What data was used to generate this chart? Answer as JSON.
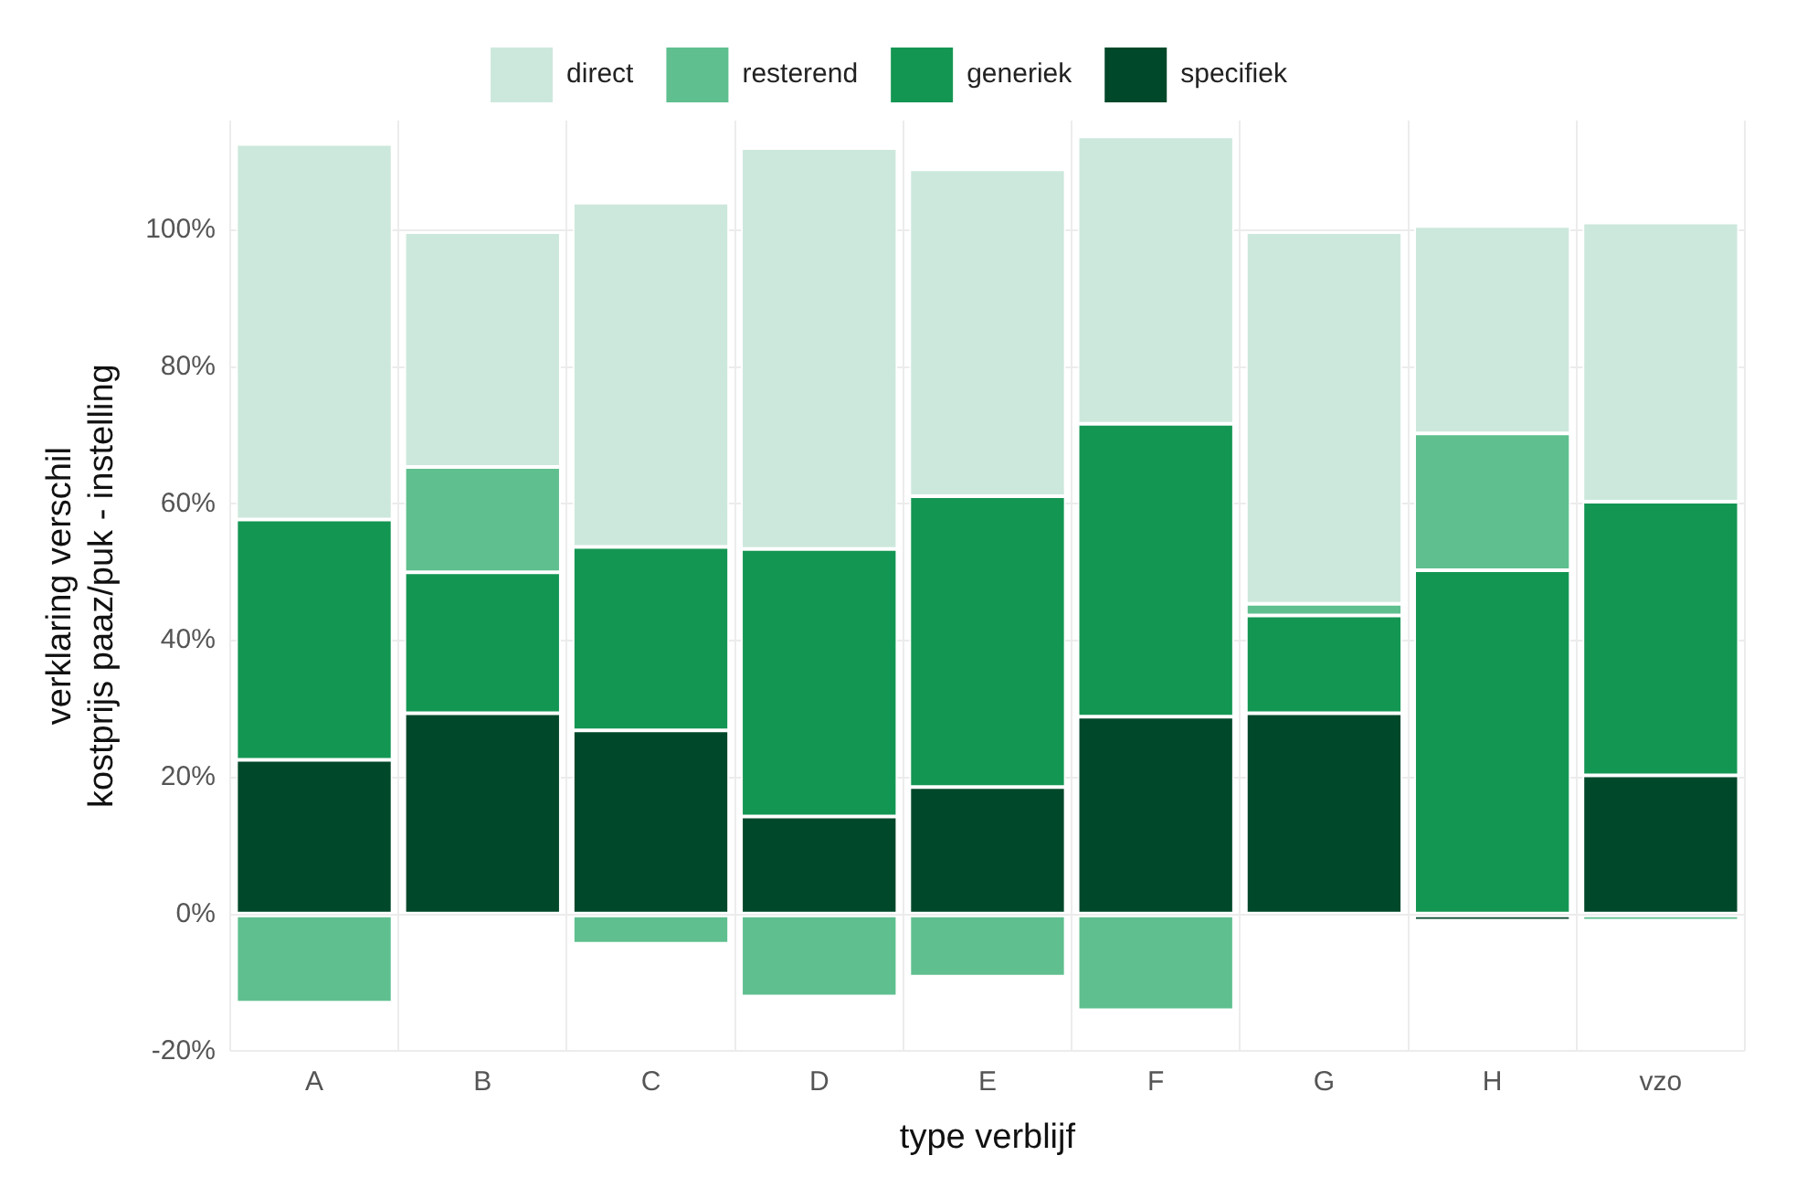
{
  "chart_data": {
    "type": "bar",
    "stacked": true,
    "xlabel": "type verblijf",
    "ylabel": "verklaring verschil\nkostprijs paaz/puk - instelling",
    "categories": [
      "A",
      "B",
      "C",
      "D",
      "E",
      "F",
      "G",
      "H",
      "vzo"
    ],
    "series": [
      {
        "name": "specifiek",
        "color": "#00482a",
        "values": [
          22.6,
          29.4,
          26.9,
          14.3,
          18.6,
          28.9,
          29.4,
          -0.9,
          20.3
        ]
      },
      {
        "name": "generiek",
        "color": "#149653",
        "values": [
          35.1,
          20.6,
          26.8,
          39.1,
          42.5,
          42.8,
          14.3,
          50.3,
          40
        ]
      },
      {
        "name": "resterend",
        "color": "#5fbf8f",
        "values": [
          -12.9,
          15.4,
          -4.3,
          -12,
          -9.1,
          -14,
          1.7,
          20,
          -0.9
        ]
      },
      {
        "name": "direct",
        "color": "#cce8dc",
        "values": [
          54.9,
          34.3,
          50.3,
          58.6,
          47.8,
          42,
          54.3,
          30.3,
          40.8
        ]
      }
    ],
    "ylim": [
      -20,
      116
    ],
    "yticks": [
      {
        "value": -20,
        "label": "-20%"
      },
      {
        "value": 0,
        "label": "0%"
      },
      {
        "value": 20,
        "label": "20%"
      },
      {
        "value": 40,
        "label": "40%"
      },
      {
        "value": 60,
        "label": "60%"
      },
      {
        "value": 80,
        "label": "80%"
      },
      {
        "value": 100,
        "label": "100%"
      }
    ],
    "grid": true,
    "legend": "top"
  }
}
